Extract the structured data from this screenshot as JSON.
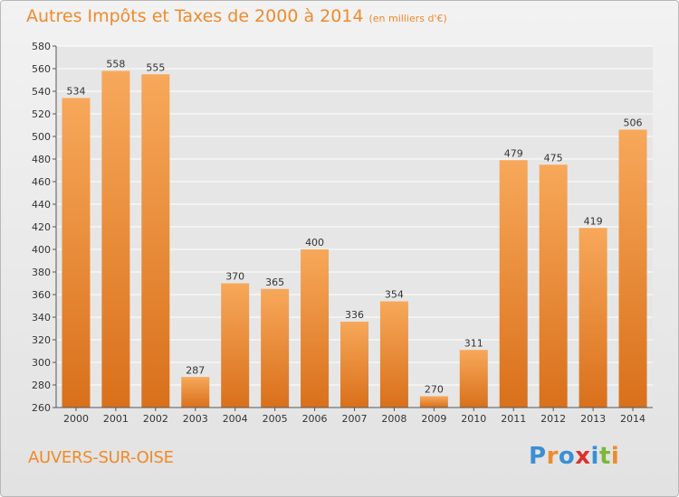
{
  "title": "Autres Impôts et Taxes de 2000 à 2014",
  "subtitle": "(en milliers d'€)",
  "location": "AUVERS-SUR-OISE",
  "brand": {
    "letters": [
      "P",
      "r",
      "o",
      "x",
      "i",
      "t",
      "i"
    ],
    "colors": [
      "#3a8fd6",
      "#f08a2a",
      "#3a8fd6",
      "#d8322e",
      "#3a8fd6",
      "#7ab83a",
      "#f08a2a"
    ]
  },
  "colors": {
    "bar_top": "#f7a85a",
    "bar_bottom": "#d9701b",
    "accent": "#f08a2a",
    "grid": "#ffffff"
  },
  "chart_data": {
    "type": "bar",
    "categories": [
      "2000",
      "2001",
      "2002",
      "2003",
      "2004",
      "2005",
      "2006",
      "2007",
      "2008",
      "2009",
      "2010",
      "2011",
      "2012",
      "2013",
      "2014"
    ],
    "values": [
      534,
      558,
      555,
      287,
      370,
      365,
      400,
      336,
      354,
      270,
      311,
      479,
      475,
      419,
      506
    ],
    "title": "Autres Impôts et Taxes de 2000 à 2014",
    "subtitle": "(en milliers d'€)",
    "ylim": [
      260,
      580
    ],
    "yticks": [
      260,
      280,
      300,
      320,
      340,
      360,
      380,
      400,
      420,
      440,
      460,
      480,
      500,
      520,
      540,
      560,
      580
    ],
    "grid": true,
    "data_labels": true
  }
}
